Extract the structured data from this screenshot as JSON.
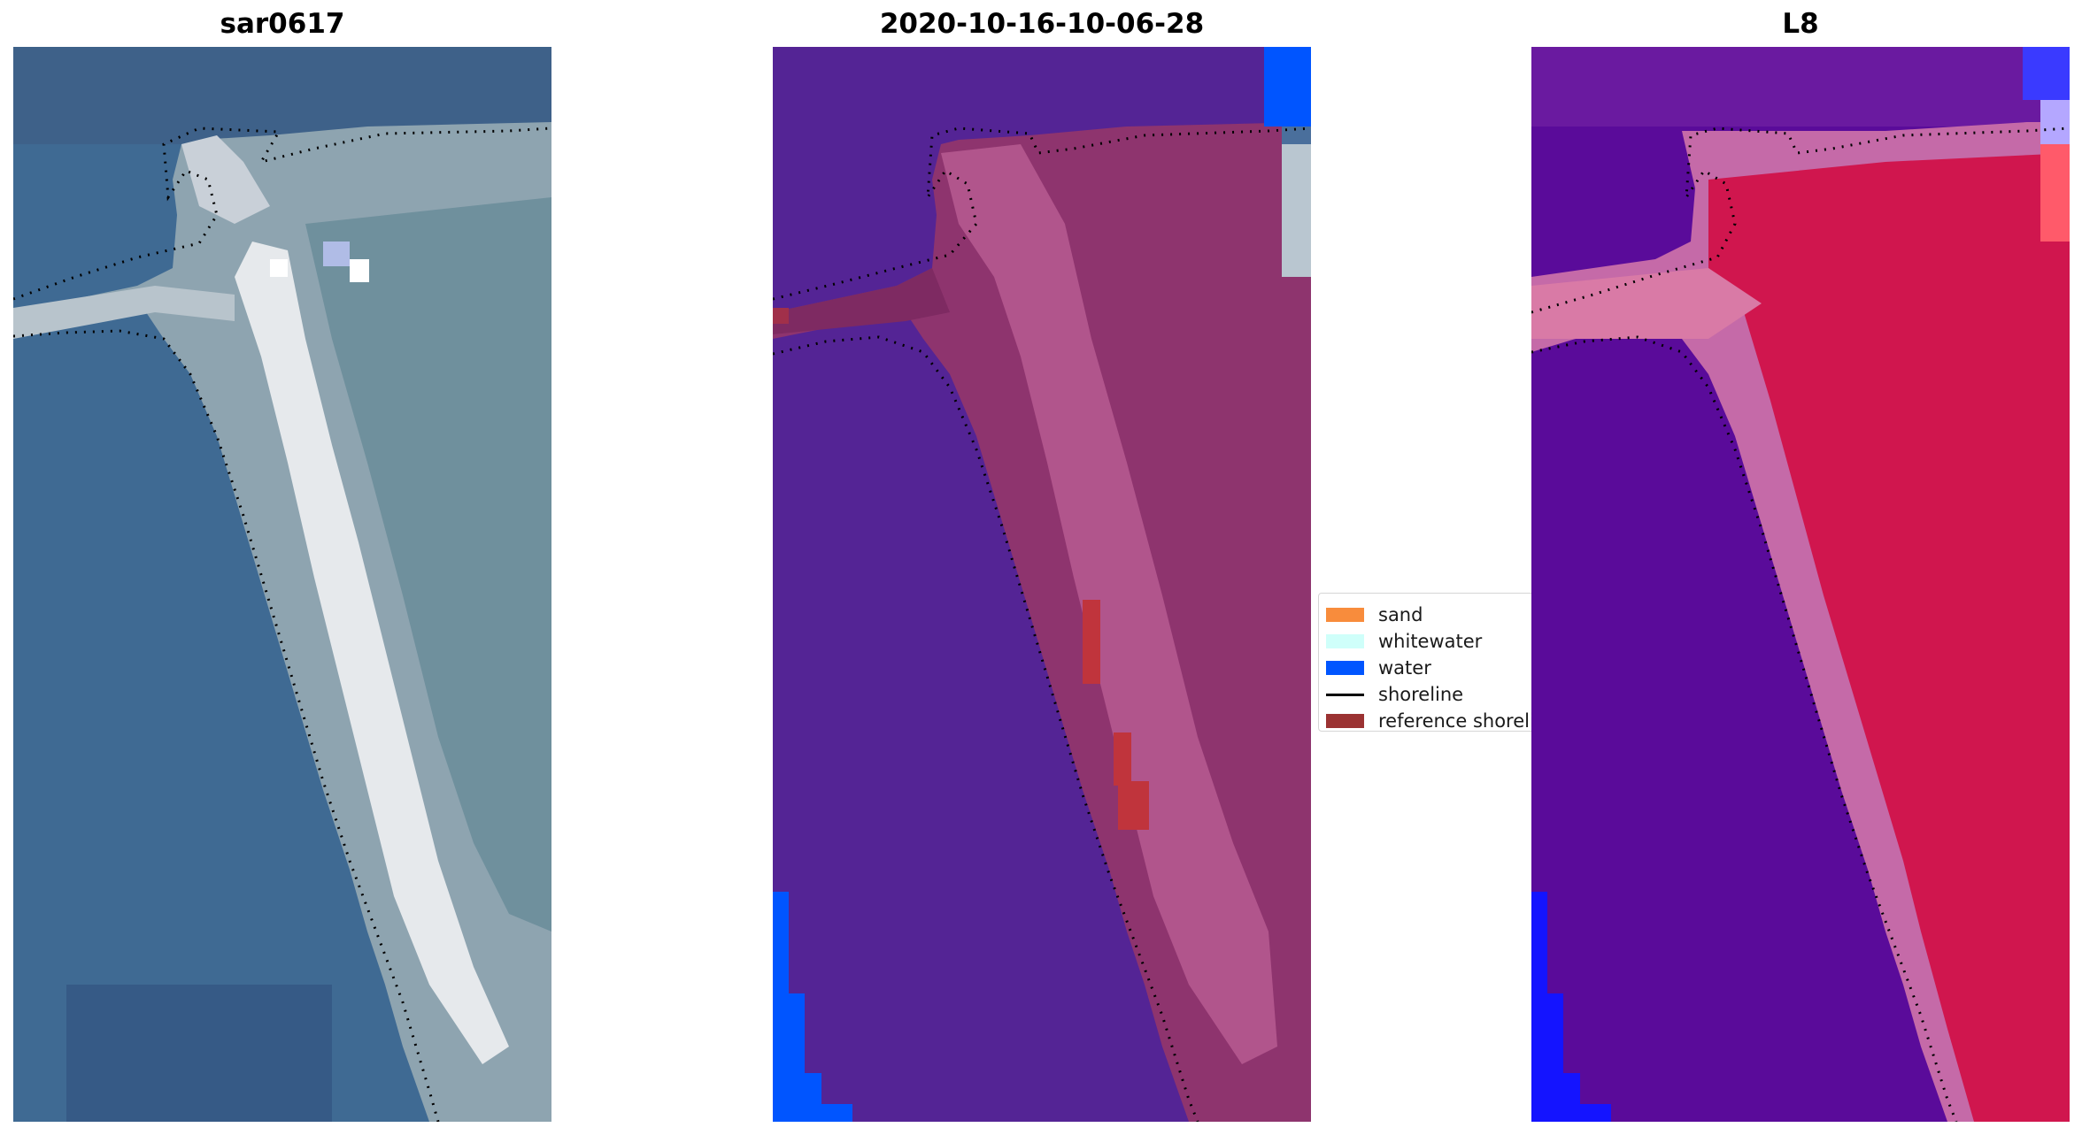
{
  "panels": [
    {
      "title": "sar0617",
      "kind": "rgb"
    },
    {
      "title": "2020-10-16-10-06-28",
      "kind": "classified"
    },
    {
      "title": "L8",
      "kind": "false-color"
    }
  ],
  "legend": {
    "items": [
      {
        "label": "sand",
        "color": "#f88c3c",
        "type": "patch"
      },
      {
        "label": "whitewater",
        "color": "#cffffa",
        "type": "patch"
      },
      {
        "label": "water",
        "color": "#0055ff",
        "type": "patch"
      },
      {
        "label": "shoreline",
        "color": "#000000",
        "type": "line"
      },
      {
        "label": "reference shoreline",
        "color": "#9b3232",
        "type": "patch"
      }
    ]
  },
  "colors": {
    "rgb_water": "#3f6a93",
    "rgb_land": "#c8ccd2",
    "rgb_vegetation": "#7a9aa3",
    "class_water_bg": "#542495",
    "class_land": "#8e346e",
    "class_sand_bright": "#c06294",
    "class_water": "#0055ff",
    "class_reference": "#c0343c",
    "l8_water": "#5a0b9a",
    "l8_land": "#d0164e",
    "l8_beach": "#c56aa8",
    "l8_blue": "#1414ff"
  }
}
